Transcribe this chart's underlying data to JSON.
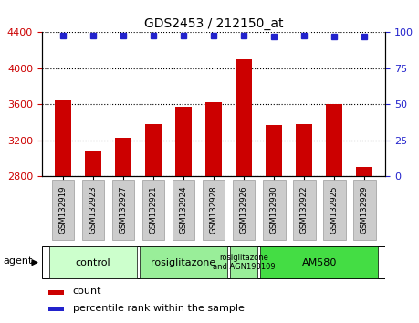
{
  "title": "GDS2453 / 212150_at",
  "samples": [
    "GSM132919",
    "GSM132923",
    "GSM132927",
    "GSM132921",
    "GSM132924",
    "GSM132928",
    "GSM132926",
    "GSM132930",
    "GSM132922",
    "GSM132925",
    "GSM132929"
  ],
  "bar_values": [
    3640,
    3080,
    3230,
    3380,
    3570,
    3620,
    4100,
    3370,
    3380,
    3600,
    2900
  ],
  "percentile_values": [
    98,
    98,
    98,
    98,
    98,
    98,
    98,
    97,
    98,
    97,
    97
  ],
  "bar_color": "#cc0000",
  "dot_color": "#2222cc",
  "ylim_left": [
    2800,
    4400
  ],
  "ylim_right": [
    0,
    100
  ],
  "yticks_left": [
    2800,
    3200,
    3600,
    4000,
    4400
  ],
  "yticks_right": [
    0,
    25,
    50,
    75,
    100
  ],
  "groups": [
    {
      "label": "control",
      "start": 0,
      "end": 3,
      "color": "#ccffcc"
    },
    {
      "label": "rosiglitazone",
      "start": 3,
      "end": 6,
      "color": "#99ee99"
    },
    {
      "label": "rosiglitazone\nand AGN193109",
      "start": 6,
      "end": 7,
      "color": "#99ee99"
    },
    {
      "label": "AM580",
      "start": 7,
      "end": 11,
      "color": "#44dd44"
    }
  ],
  "left_tick_color": "#cc0000",
  "right_tick_color": "#2222cc",
  "grid_color": "#000000",
  "background_color": "#ffffff",
  "plot_bg_color": "#ffffff",
  "legend_count_color": "#cc0000",
  "legend_percentile_color": "#2222cc",
  "xticklabel_bg": "#cccccc",
  "xticklabel_edge": "#999999"
}
